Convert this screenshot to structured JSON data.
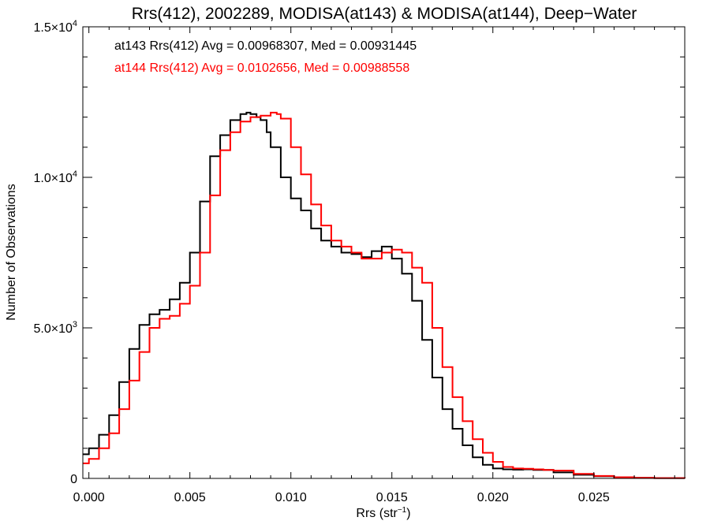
{
  "chart_data": {
    "type": "step",
    "title": "Rrs(412), 2002289, MODISA(at143) & MODISA(at144), Deep−Water",
    "xlabel": "Rrs (str",
    "xlabel_sup": "−1",
    "xlabel_close": ")",
    "ylabel": "Number of Observations",
    "xlim": [
      -0.0003,
      0.0295
    ],
    "ylim": [
      0,
      15000
    ],
    "x_ticks": [
      {
        "value": 0.0,
        "label": "0.000"
      },
      {
        "value": 0.005,
        "label": "0.005"
      },
      {
        "value": 0.01,
        "label": "0.010"
      },
      {
        "value": 0.015,
        "label": "0.015"
      },
      {
        "value": 0.02,
        "label": "0.020"
      },
      {
        "value": 0.025,
        "label": "0.025"
      }
    ],
    "y_ticks": [
      {
        "value": 0,
        "label": "0",
        "exp": ""
      },
      {
        "value": 5000,
        "label": "5.0×10",
        "exp": "3"
      },
      {
        "value": 10000,
        "label": "1.0×10",
        "exp": "4"
      },
      {
        "value": 15000,
        "label": "1.5×10",
        "exp": "4"
      }
    ],
    "annotations": [
      {
        "text": "at143 Rrs(412) Avg = 0.00968307, Med = 0.00931445",
        "color": "#000000"
      },
      {
        "text": "at144 Rrs(412) Avg = 0.0102656, Med = 0.00988558",
        "color": "#ff0000"
      }
    ],
    "series": [
      {
        "name": "at143",
        "color": "#000000",
        "x": [
          -0.0003,
          0.0,
          0.0005,
          0.001,
          0.0015,
          0.002,
          0.0025,
          0.003,
          0.0035,
          0.004,
          0.0045,
          0.005,
          0.0055,
          0.006,
          0.0065,
          0.007,
          0.0075,
          0.0078,
          0.008,
          0.0083,
          0.0085,
          0.0088,
          0.009,
          0.0095,
          0.01,
          0.0105,
          0.011,
          0.0115,
          0.012,
          0.0125,
          0.013,
          0.0135,
          0.014,
          0.0145,
          0.015,
          0.0155,
          0.016,
          0.0165,
          0.017,
          0.0175,
          0.018,
          0.0185,
          0.019,
          0.0195,
          0.02,
          0.0205,
          0.021,
          0.0215,
          0.022,
          0.023,
          0.024,
          0.025,
          0.026,
          0.027,
          0.028,
          0.0295
        ],
        "y": [
          800,
          1000,
          1450,
          2100,
          3200,
          4300,
          5100,
          5450,
          5600,
          5950,
          6500,
          7500,
          9200,
          10700,
          11400,
          11900,
          12100,
          12150,
          12100,
          12000,
          11900,
          11500,
          11000,
          10000,
          9300,
          8900,
          8300,
          7900,
          7700,
          7500,
          7450,
          7350,
          7550,
          7700,
          7300,
          6800,
          5900,
          4600,
          3350,
          2300,
          1650,
          1100,
          700,
          450,
          330,
          300,
          290,
          300,
          280,
          200,
          120,
          70,
          40,
          20,
          10,
          5
        ]
      },
      {
        "name": "at144",
        "color": "#ff0000",
        "x": [
          -0.0003,
          0.0,
          0.0005,
          0.001,
          0.0015,
          0.002,
          0.0025,
          0.003,
          0.0035,
          0.004,
          0.0045,
          0.005,
          0.0055,
          0.006,
          0.0065,
          0.007,
          0.0075,
          0.008,
          0.0085,
          0.0088,
          0.009,
          0.0093,
          0.0095,
          0.01,
          0.0105,
          0.011,
          0.0115,
          0.012,
          0.0125,
          0.013,
          0.0135,
          0.014,
          0.0145,
          0.015,
          0.0155,
          0.016,
          0.0165,
          0.017,
          0.0175,
          0.018,
          0.0185,
          0.019,
          0.0195,
          0.02,
          0.0205,
          0.021,
          0.0215,
          0.022,
          0.0225,
          0.023,
          0.024,
          0.025,
          0.026,
          0.027,
          0.028,
          0.0295
        ],
        "y": [
          500,
          650,
          1000,
          1500,
          2300,
          3250,
          4200,
          5000,
          5300,
          5400,
          5800,
          6400,
          7500,
          9400,
          10900,
          11500,
          11850,
          12000,
          12050,
          12050,
          12150,
          12100,
          11950,
          11000,
          10100,
          9100,
          8400,
          7900,
          7700,
          7500,
          7300,
          7300,
          7500,
          7600,
          7500,
          7000,
          6500,
          5000,
          3700,
          2700,
          1900,
          1300,
          850,
          550,
          380,
          330,
          320,
          300,
          280,
          260,
          150,
          80,
          40,
          20,
          10,
          5
        ]
      }
    ]
  }
}
